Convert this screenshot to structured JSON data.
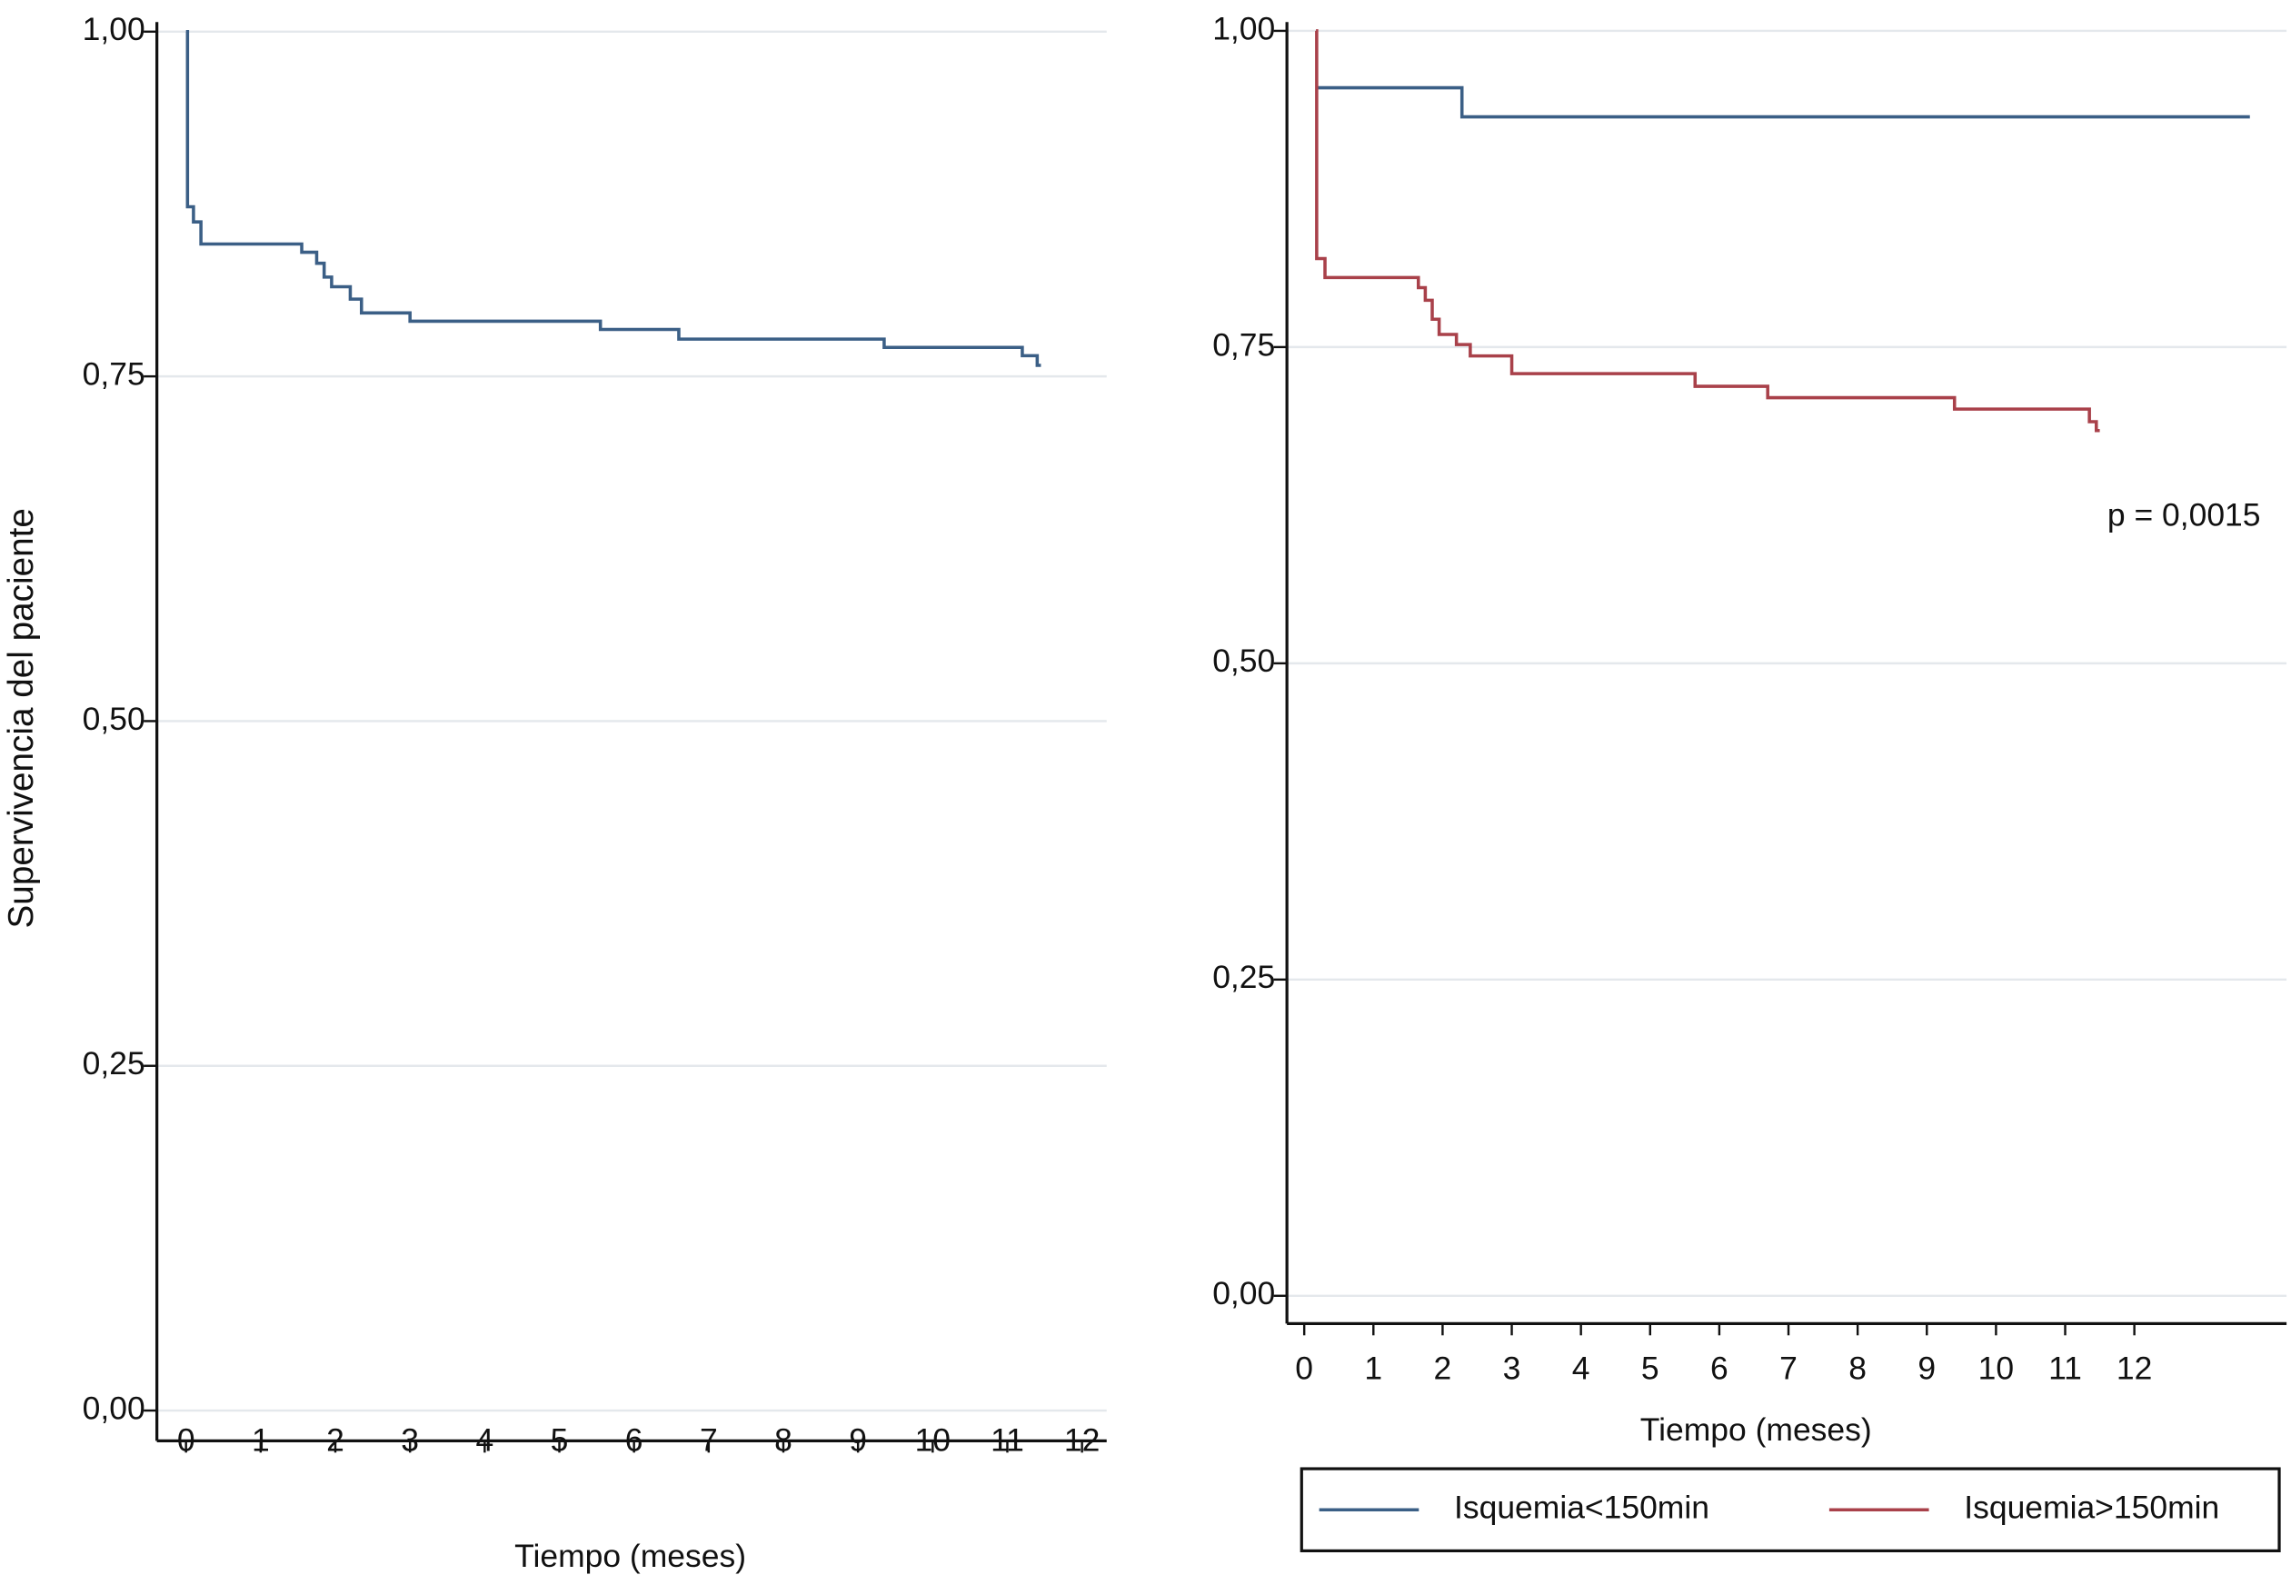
{
  "chart_data": [
    {
      "type": "line",
      "ylabel": "Supervivencia del paciente",
      "xlabel": "Tiempo (meses)",
      "xlim": [
        -0.39,
        12.33
      ],
      "xticks": [
        0,
        1,
        2,
        3,
        4,
        5,
        6,
        7,
        8,
        9,
        10,
        11,
        12
      ],
      "ylim": [
        -0.022,
        1.007
      ],
      "yticks": [
        {
          "value": 0,
          "label": "0,00"
        },
        {
          "value": 0.25,
          "label": "0,25"
        },
        {
          "value": 0.5,
          "label": "0,50"
        },
        {
          "value": 0.75,
          "label": "0,75"
        },
        {
          "value": 1,
          "label": "1,00"
        }
      ],
      "grid": true,
      "step": true,
      "series": [
        {
          "color": "#3b5f86",
          "x": [
            0,
            0.02,
            0.1,
            0.2,
            1.55,
            1.75,
            1.85,
            1.95,
            2.2,
            2.35,
            3.0,
            5.55,
            6.6,
            9.35,
            11.2,
            11.4,
            11.45
          ],
          "values": [
            1.0,
            0.873,
            0.862,
            0.846,
            0.84,
            0.832,
            0.822,
            0.815,
            0.806,
            0.796,
            0.79,
            0.784,
            0.777,
            0.771,
            0.765,
            0.758,
            0.758
          ]
        }
      ]
    },
    {
      "type": "line",
      "xlabel": "Tiempo (meses)",
      "annotation": "p = 0,0015",
      "xlim": [
        -0.25,
        14.2
      ],
      "xticks": [
        0,
        1,
        2,
        3,
        4,
        5,
        6,
        7,
        8,
        9,
        10,
        11,
        12
      ],
      "ylim": [
        -0.022,
        1.007
      ],
      "yticks": [
        {
          "value": 0,
          "label": "0,00"
        },
        {
          "value": 0.25,
          "label": "0,25"
        },
        {
          "value": 0.5,
          "label": "0,50"
        },
        {
          "value": 0.75,
          "label": "0,75"
        },
        {
          "value": 1,
          "label": "1,00"
        }
      ],
      "grid": true,
      "step": true,
      "legend": "bottom",
      "series": [
        {
          "name": "Isquemia<150min",
          "color": "#3b5f86",
          "x": [
            0.17,
            2.28,
            13.67
          ],
          "values": [
            0.955,
            0.932,
            0.932
          ]
        },
        {
          "name": "Isquemia>150min",
          "color": "#a9414a",
          "x": [
            0.17,
            0.18,
            0.3,
            1.65,
            1.75,
            1.85,
            1.95,
            2.2,
            2.4,
            3.0,
            5.65,
            6.7,
            9.4,
            11.35,
            11.45,
            11.5
          ],
          "values": [
            1.0,
            0.82,
            0.805,
            0.797,
            0.787,
            0.772,
            0.76,
            0.752,
            0.743,
            0.729,
            0.719,
            0.71,
            0.701,
            0.691,
            0.684,
            0.684
          ]
        }
      ]
    }
  ]
}
